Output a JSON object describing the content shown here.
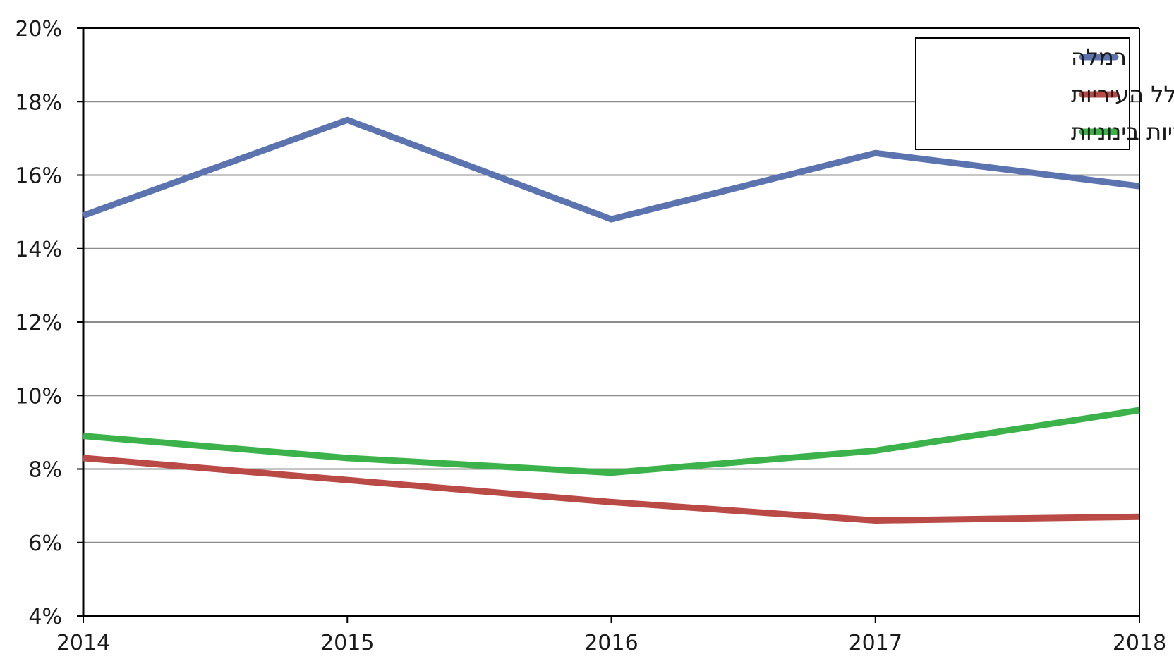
{
  "chart_data": {
    "type": "line",
    "title": "",
    "xlabel": "",
    "ylabel": "",
    "x": [
      "2014",
      "2015",
      "2016",
      "2017",
      "2018"
    ],
    "ylim": [
      4,
      20
    ],
    "yticks": [
      "4%",
      "6%",
      "8%",
      "10%",
      "12%",
      "14%",
      "16%",
      "18%",
      "20%"
    ],
    "y_unit": "%",
    "grid": true,
    "legend_position": "top-right",
    "series": [
      {
        "name": "רמלה",
        "color": "#5b73ae",
        "values": [
          14.9,
          17.5,
          14.8,
          16.6,
          15.7
        ]
      },
      {
        "name": "כלל העיריות",
        "color": "#b94a45",
        "values": [
          8.3,
          7.7,
          7.1,
          6.6,
          6.7
        ]
      },
      {
        "name": "עיריות בינוניות",
        "color": "#3cb34a",
        "values": [
          8.9,
          8.3,
          7.9,
          8.5,
          9.6
        ]
      }
    ]
  }
}
